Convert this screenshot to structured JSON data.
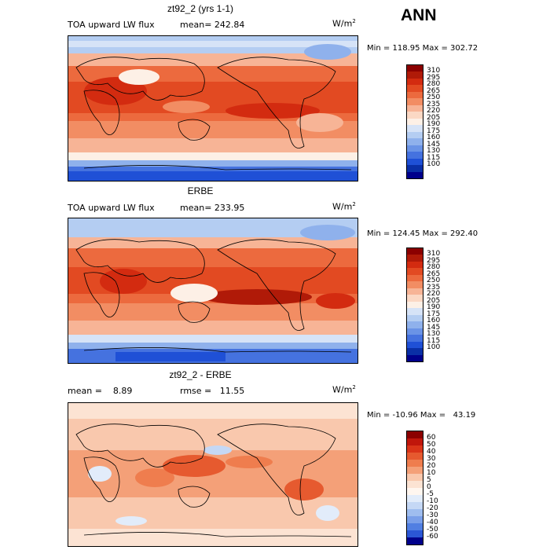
{
  "season": "ANN",
  "units_text": "W/m",
  "units_exp": "2",
  "panels": [
    {
      "title": "zt92_2 (yrs 1-1)",
      "left_label": "TOA upward LW flux",
      "stat1": "mean= 242.84",
      "stat2": "",
      "minmax": "Min = 118.95 Max = 302.72",
      "levels": [
        "310",
        "295",
        "280",
        "265",
        "250",
        "235",
        "220",
        "205",
        "190",
        "175",
        "160",
        "145",
        "130",
        "115",
        "100"
      ]
    },
    {
      "title": "ERBE",
      "left_label": "TOA upward LW flux",
      "stat1": "mean= 233.95",
      "stat2": "",
      "minmax": "Min = 124.45 Max = 292.40",
      "levels": [
        "310",
        "295",
        "280",
        "265",
        "250",
        "235",
        "220",
        "205",
        "190",
        "175",
        "160",
        "145",
        "130",
        "115",
        "100"
      ]
    },
    {
      "title": "zt92_2 - ERBE",
      "left_label": "mean =    8.89",
      "stat1": "rmse =   11.55",
      "stat2": "",
      "minmax": "Min = -10.96 Max =   43.19",
      "levels": [
        "60",
        "50",
        "40",
        "30",
        "20",
        "10",
        "5",
        "0",
        "-5",
        "-10",
        "-20",
        "-30",
        "-40",
        "-50",
        "-60"
      ]
    }
  ],
  "colors": {
    "abs_scale": [
      "#8b0000",
      "#b01a08",
      "#d32b10",
      "#e24a22",
      "#ec6a3e",
      "#f28d63",
      "#f7b496",
      "#fbd8c4",
      "#fdf0e6",
      "#d6e3f7",
      "#b4cdf2",
      "#8fb1ec",
      "#6a93e6",
      "#4572df",
      "#1f50d6",
      "#0a2fa6",
      "#00008b"
    ],
    "diff_scale": [
      "#8b0000",
      "#c0160b",
      "#da3418",
      "#e65a2f",
      "#ef7d4e",
      "#f4a078",
      "#f9c8ad",
      "#fce3d3",
      "#fff6ef",
      "#e2ecfa",
      "#c5d8f5",
      "#9fbdef",
      "#7a9fe9",
      "#517fe2",
      "#2b57d6",
      "#00008b"
    ]
  }
}
